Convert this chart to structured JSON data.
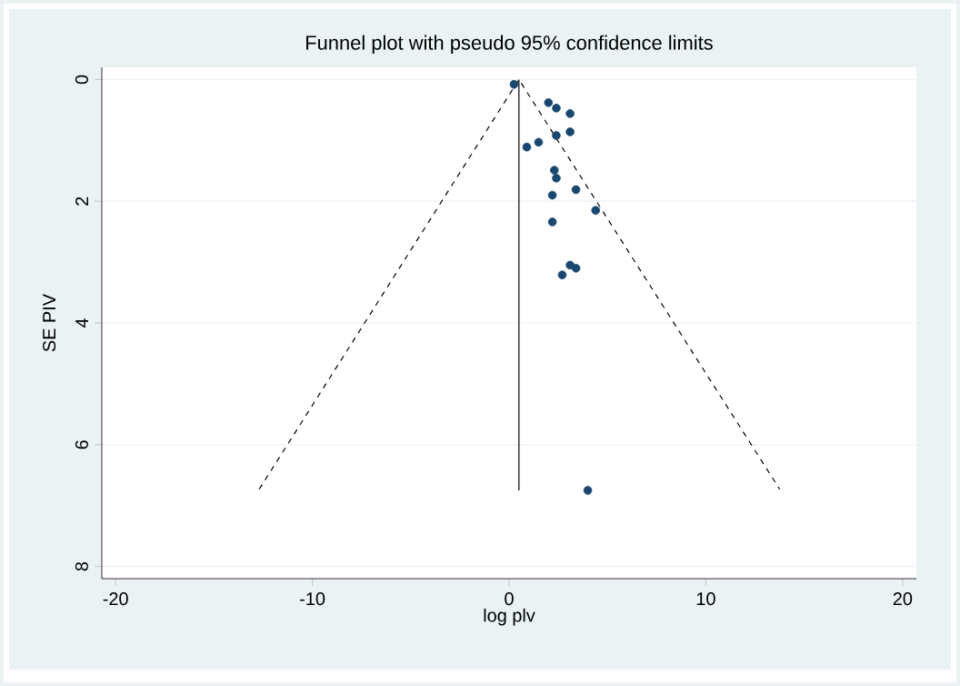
{
  "chart_data": {
    "type": "scatter",
    "title": "Funnel plot with pseudo 95% confidence limits",
    "xlabel": "log plv",
    "ylabel": "SE PIV",
    "xlim": [
      -20.7,
      20.7
    ],
    "ylim": [
      8.2,
      -0.2
    ],
    "xticks": [
      -20,
      -10,
      0,
      10,
      20
    ],
    "yticks": [
      0,
      2,
      4,
      6,
      8
    ],
    "grid": "y",
    "series": [
      {
        "marker": "circle",
        "color": "#1a476f",
        "x": [
          0.25,
          2.0,
          2.4,
          3.1,
          3.1,
          2.4,
          1.5,
          0.9,
          2.3,
          2.4,
          3.4,
          2.2,
          4.4,
          2.2,
          3.1,
          3.4,
          2.7,
          4.0
        ],
        "values": [
          0.08,
          0.38,
          0.47,
          0.56,
          0.86,
          0.92,
          1.03,
          1.11,
          1.49,
          1.62,
          1.81,
          1.9,
          2.15,
          2.34,
          3.05,
          3.1,
          3.21,
          6.75
        ]
      },
      {
        "type": "line",
        "line_style": "solid",
        "color": "#000000",
        "x": [
          0.5,
          0.5
        ],
        "values": [
          0,
          6.75
        ]
      },
      {
        "type": "line",
        "line_style": "dashed",
        "color": "#000000",
        "x": [
          -12.7,
          0.5,
          13.75
        ],
        "values": [
          6.73,
          0,
          6.73
        ]
      }
    ]
  }
}
